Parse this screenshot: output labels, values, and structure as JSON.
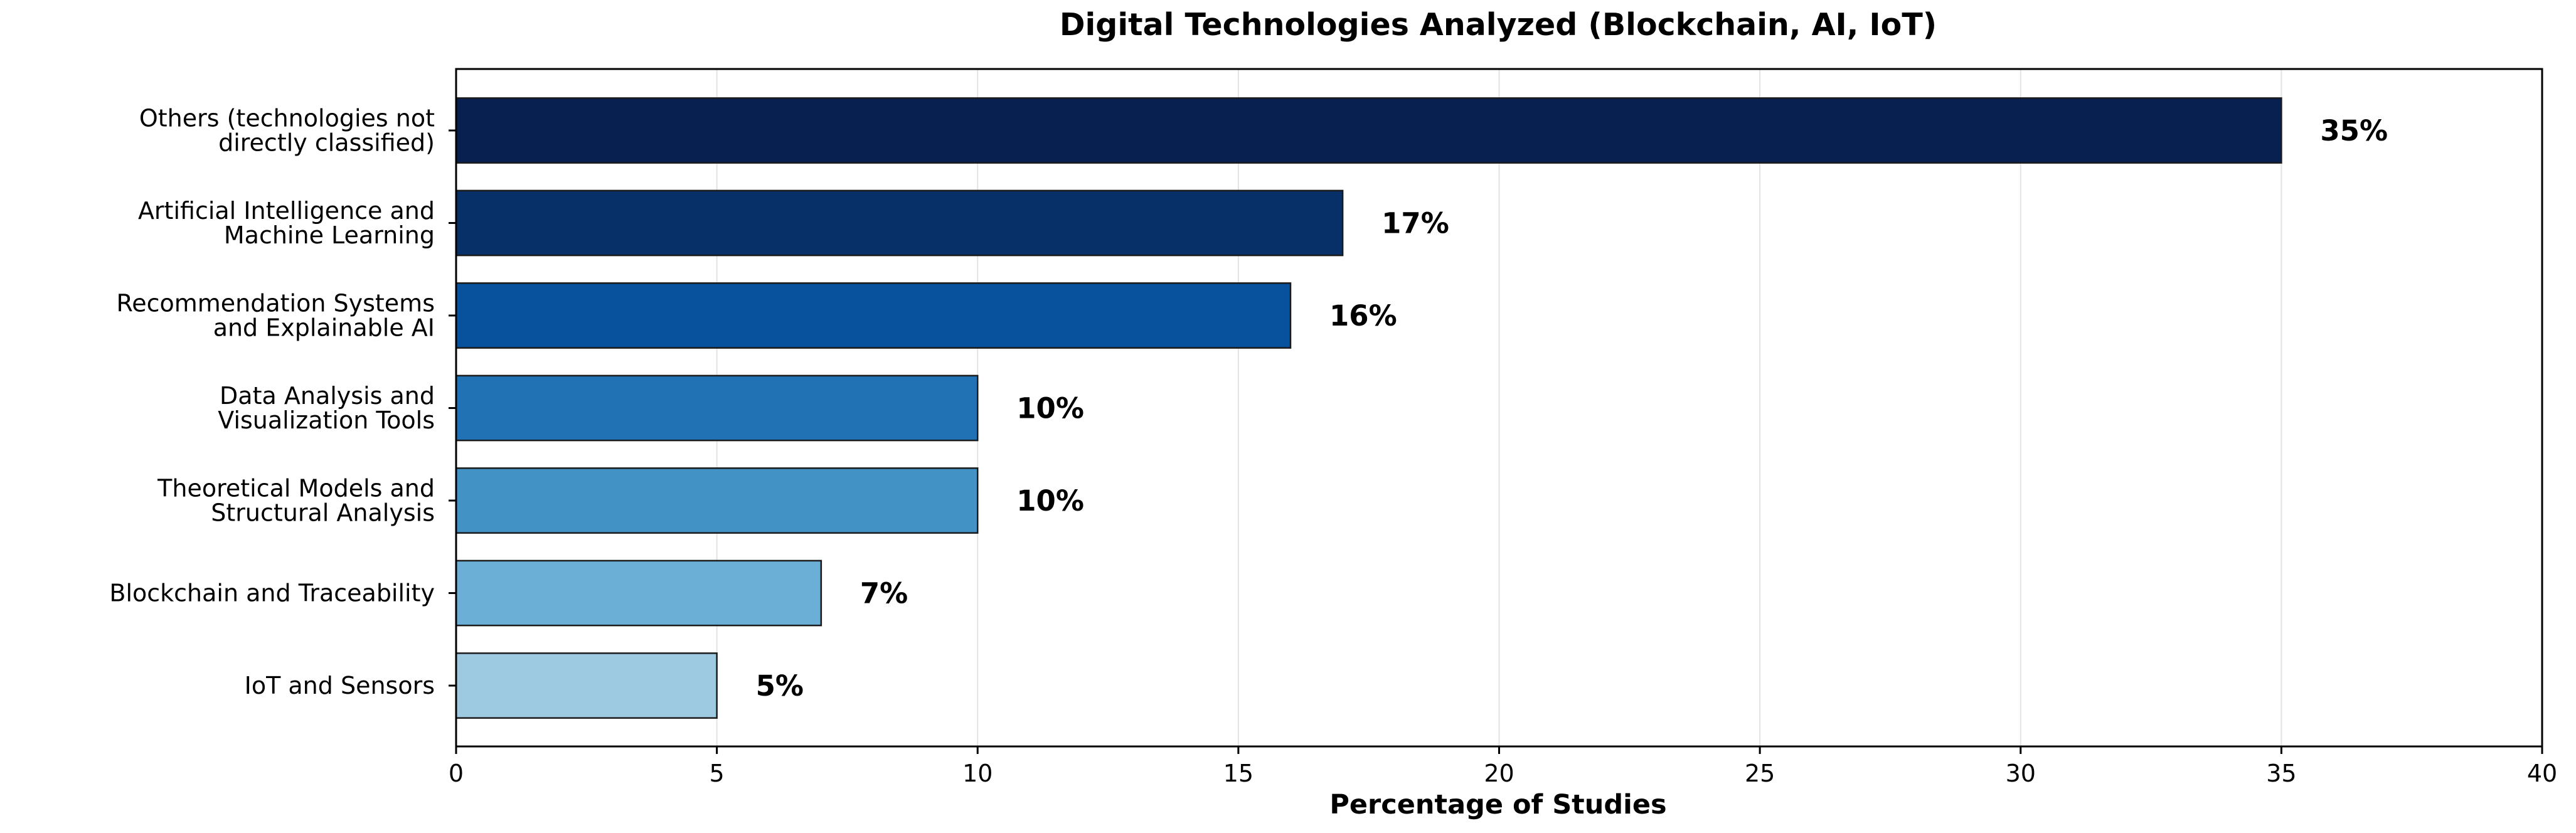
{
  "chart_data": {
    "type": "bar",
    "orientation": "horizontal",
    "title": "Digital Technologies Analyzed (Blockchain, AI, IoT)",
    "xlabel": "Percentage of Studies",
    "ylabel": "",
    "xlim": [
      0,
      40
    ],
    "xticks": [
      0,
      5,
      10,
      15,
      20,
      25,
      30,
      35,
      40
    ],
    "grid": "vertical",
    "categories": [
      [
        "Others (technologies not",
        "directly classified)"
      ],
      [
        "Artificial Intelligence and",
        "Machine Learning"
      ],
      [
        "Recommendation Systems",
        "and Explainable AI"
      ],
      [
        "Data Analysis and",
        "Visualization Tools"
      ],
      [
        "Theoretical Models and",
        "Structural Analysis"
      ],
      [
        "Blockchain and Traceability"
      ],
      [
        "IoT and Sensors"
      ]
    ],
    "values": [
      35,
      17,
      16,
      10,
      10,
      7,
      5
    ],
    "data_labels": [
      "35%",
      "17%",
      "16%",
      "10%",
      "10%",
      "7%",
      "5%"
    ],
    "colors": [
      "#08204f",
      "#083068",
      "#08519c",
      "#2171b5",
      "#4292c6",
      "#6baed6",
      "#9ecae1"
    ]
  }
}
